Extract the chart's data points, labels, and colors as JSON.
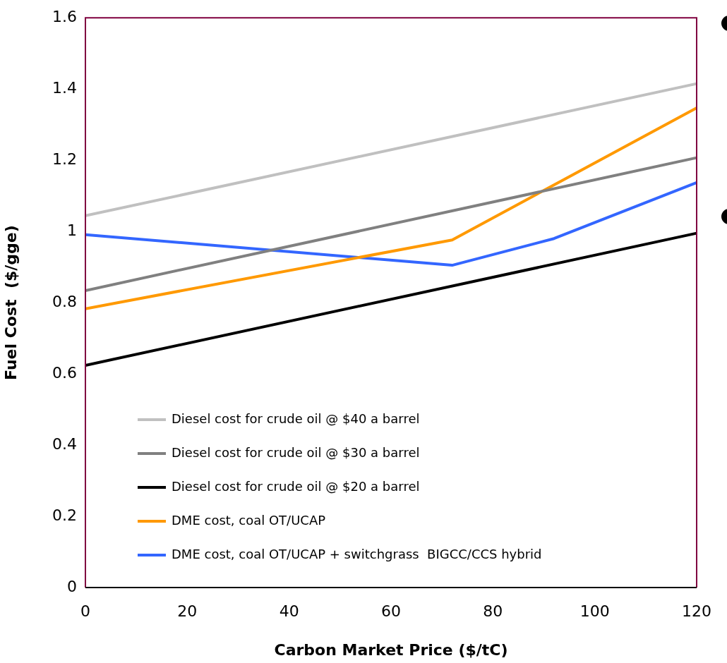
{
  "chart_data": {
    "type": "line",
    "xlabel": "Carbon Market Price ($/tC)",
    "ylabel": "Fuel Cost  ($/gge)",
    "xlim": [
      0,
      120
    ],
    "xticks": [
      0,
      20,
      40,
      60,
      80,
      100,
      120
    ],
    "ylim": [
      0,
      1.6
    ],
    "yticks": [
      0,
      0.2,
      0.4,
      0.6,
      0.8,
      1,
      1.2,
      1.4,
      1.6
    ],
    "grid": false,
    "legend": "bottom left",
    "marker": "none",
    "line_style": "solid",
    "series": [
      {
        "name": "Diesel cost for crude oil @ $40 a barrel",
        "color": "#c0c0c0",
        "x": [
          0,
          120
        ],
        "values": [
          1.044,
          1.415
        ]
      },
      {
        "name": "Diesel cost for crude oil @ $30 a barrel",
        "color": "#808080",
        "x": [
          0,
          120
        ],
        "values": [
          0.834,
          1.207
        ]
      },
      {
        "name": "Diesel cost for crude oil @ $20 a barrel",
        "color": "#000000",
        "x": [
          0,
          120
        ],
        "values": [
          0.624,
          0.995
        ]
      },
      {
        "name": "DME cost, coal OT/UCAP",
        "color": "#ff9900",
        "x": [
          0,
          72,
          120
        ],
        "values": [
          0.783,
          0.976,
          1.347
        ]
      },
      {
        "name": "DME cost, coal OT/UCAP + switchgrass  BIGCC/CCS hybrid",
        "color": "#3366ff",
        "x": [
          0,
          72,
          92,
          120
        ],
        "values": [
          0.991,
          0.905,
          0.98,
          1.137
        ]
      }
    ]
  }
}
